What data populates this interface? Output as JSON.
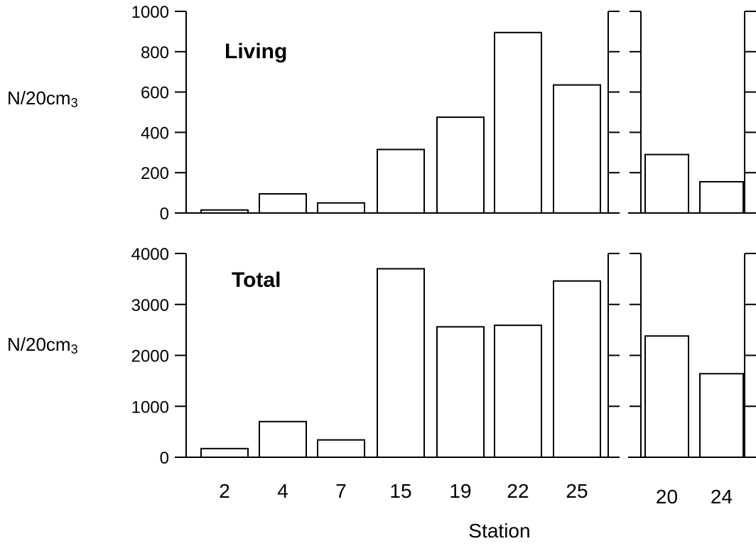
{
  "chart_data": [
    {
      "type": "bar",
      "title": "Living",
      "ylabel": "N/20cm",
      "ylabel_sup": "3",
      "ylim": [
        0,
        1000
      ],
      "yticks": [
        0,
        200,
        400,
        600,
        800,
        1000
      ],
      "ytick_labels": [
        "0",
        "200",
        "400",
        "600",
        "800",
        "1000"
      ],
      "groups": [
        {
          "categories": [
            "2",
            "4",
            "7",
            "15",
            "19",
            "22",
            "25"
          ],
          "values": [
            15,
            95,
            50,
            315,
            475,
            895,
            635
          ]
        },
        {
          "categories": [
            "20",
            "24"
          ],
          "values": [
            290,
            155
          ]
        }
      ]
    },
    {
      "type": "bar",
      "title": "Total",
      "ylabel": "N/20cm",
      "ylabel_sup": "3",
      "ylim": [
        0,
        4000
      ],
      "yticks": [
        0,
        1000,
        2000,
        3000,
        4000
      ],
      "ytick_labels": [
        "0",
        "1000",
        "2000",
        "3000",
        "4000"
      ],
      "groups": [
        {
          "categories": [
            "2",
            "4",
            "7",
            "15",
            "19",
            "22",
            "25"
          ],
          "values": [
            170,
            700,
            340,
            3700,
            2560,
            2590,
            3460
          ]
        },
        {
          "categories": [
            "20",
            "24"
          ],
          "values": [
            2380,
            1640
          ]
        }
      ]
    }
  ],
  "xlabel": "Station",
  "colors": {
    "bar_fill": "#ffffff",
    "stroke": "#000000"
  }
}
